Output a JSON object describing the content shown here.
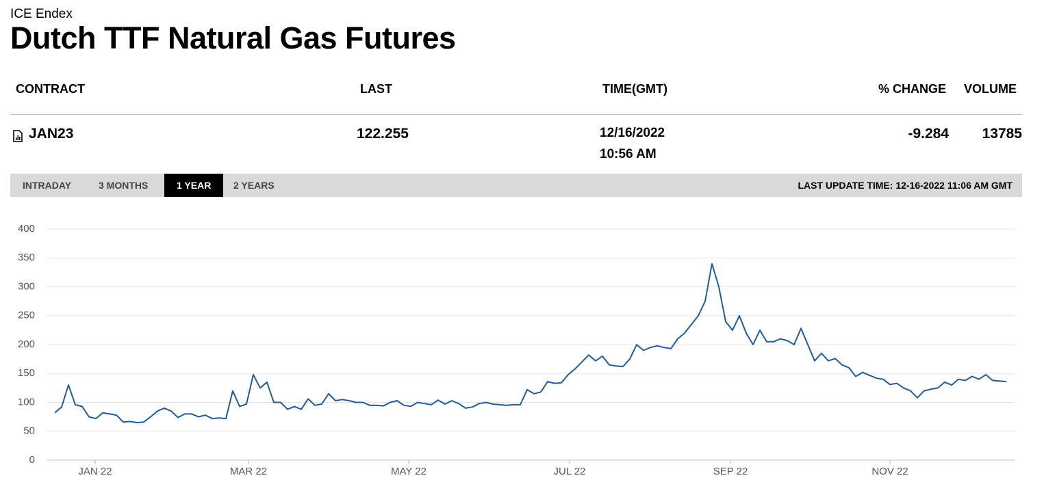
{
  "header": {
    "eyebrow": "ICE Endex",
    "title": "Dutch TTF Natural Gas Futures"
  },
  "table": {
    "columns": [
      "CONTRACT",
      "LAST",
      "TIME(GMT)",
      "% CHANGE",
      "VOLUME"
    ],
    "rows": [
      {
        "contract": "JAN23",
        "last": "122.255",
        "date": "12/16/2022",
        "time": "10:56 AM",
        "change": "-9.284",
        "volume": "13785"
      }
    ]
  },
  "tabs": [
    "INTRADAY",
    "3 MONTHS",
    "1 YEAR",
    "2 YEARS"
  ],
  "active_tab": 2,
  "last_update": "LAST UPDATE TIME: 12-16-2022 11:06 AM GMT",
  "chart_data": {
    "type": "line",
    "color": "#1f5b9e",
    "grid": true,
    "values": [
      82,
      92,
      130,
      96,
      93,
      75,
      72,
      82,
      80,
      78,
      66,
      67,
      65,
      66,
      75,
      85,
      90,
      85,
      74,
      80,
      80,
      75,
      78,
      72,
      73,
      72,
      120,
      93,
      97,
      148,
      125,
      135,
      100,
      100,
      88,
      93,
      88,
      106,
      95,
      97,
      115,
      103,
      105,
      103,
      100,
      100,
      95,
      95,
      94,
      100,
      103,
      95,
      93,
      100,
      98,
      96,
      104,
      97,
      103,
      98,
      90,
      92,
      98,
      100,
      97,
      96,
      95,
      96,
      96,
      122,
      115,
      118,
      136,
      133,
      134,
      148,
      158,
      170,
      182,
      172,
      180,
      165,
      163,
      162,
      175,
      200,
      190,
      195,
      198,
      195,
      193,
      210,
      220,
      235,
      250,
      275,
      340,
      300,
      240,
      225,
      250,
      220,
      200,
      225,
      205,
      205,
      210,
      207,
      200,
      228,
      200,
      172,
      185,
      172,
      176,
      165,
      160,
      145,
      152,
      147,
      142,
      140,
      131,
      133,
      125,
      120,
      108,
      120,
      123,
      125,
      135,
      130,
      140,
      138,
      145,
      140,
      148,
      138,
      137,
      136
    ],
    "xlim": [
      -1.2,
      140.2
    ],
    "xticks": [
      {
        "value": 5.9,
        "label": "JAN 22"
      },
      {
        "value": 28.3,
        "label": "MAR 22"
      },
      {
        "value": 51.7,
        "label": "MAY 22"
      },
      {
        "value": 75.2,
        "label": "JUL 22"
      },
      {
        "value": 98.7,
        "label": "SEP 22"
      },
      {
        "value": 122,
        "label": "NOV 22"
      }
    ],
    "ylim": [
      0,
      400
    ],
    "yticks": [
      0,
      50,
      100,
      150,
      200,
      250,
      300,
      350,
      400
    ]
  }
}
